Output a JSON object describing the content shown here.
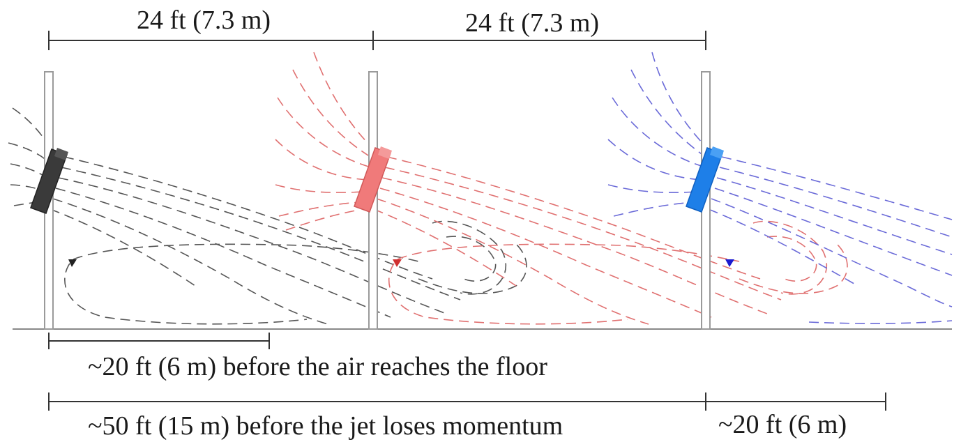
{
  "dimensions": {
    "top_left": "24 ft (7.3 m)",
    "top_right": "24 ft (7.3 m)",
    "floor_reach": "~20 ft (6 m) before the air reaches the floor",
    "momentum_loss": "~50 ft (15 m) before the jet loses momentum",
    "extra_reach": "~20 ft (6 m)"
  },
  "fans": [
    {
      "name": "fan-1",
      "color": "#3a3a3a",
      "stream_color": "#555555"
    },
    {
      "name": "fan-2",
      "color": "#f07a7a",
      "stream_color": "#e07070"
    },
    {
      "name": "fan-3",
      "color": "#1e7fe8",
      "stream_color": "#6a6ad8"
    }
  ],
  "colors": {
    "dimension_line": "#333333",
    "column_stroke": "#9a9a9a",
    "floor": "#888888"
  }
}
